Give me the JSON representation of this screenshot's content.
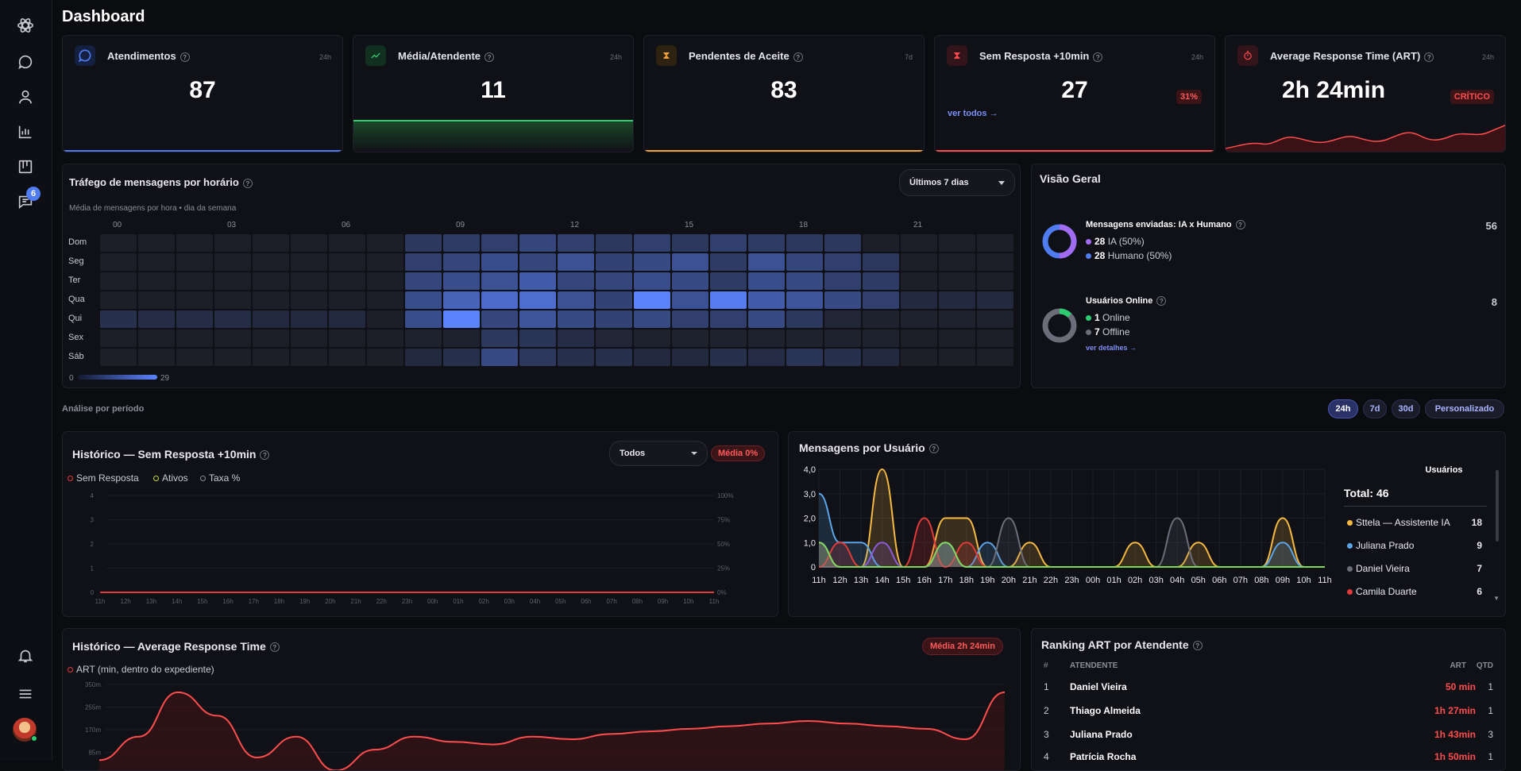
{
  "page": {
    "title": "Dashboard"
  },
  "sidebar": {
    "badge_count": "6"
  },
  "kpis": [
    {
      "label": "Atendimentos",
      "period": "24h",
      "value": "87",
      "icon": "chat-bubble-icon",
      "accent": "#4f7cf0"
    },
    {
      "label": "Média/Atendente",
      "period": "24h",
      "value": "11",
      "icon": "trend-up-icon",
      "accent": "#2ecc71"
    },
    {
      "label": "Pendentes de Aceite",
      "period": "7d",
      "value": "83",
      "icon": "hourglass-icon",
      "accent": "#f0a13c"
    },
    {
      "label": "Sem Resposta +10min",
      "period": "24h",
      "value": "27",
      "icon": "hourglass-icon",
      "accent": "#ff4d4d",
      "badge": "31%",
      "link": "ver todos →"
    },
    {
      "label": "Average Response Time (ART)",
      "period": "24h",
      "value": "2h 24min",
      "icon": "timer-icon",
      "accent": "#ff4d4d",
      "badge": "CRÍTICO"
    }
  ],
  "traffic": {
    "title": "Tráfego de mensagens por horário",
    "subtitle": "Média de mensagens por hora • dia da semana",
    "range": "Últimos 7 dias",
    "days": [
      "Dom",
      "Seg",
      "Ter",
      "Qua",
      "Qui",
      "Sex",
      "Sáb"
    ],
    "hour_labels": [
      "00",
      "03",
      "06",
      "09",
      "12",
      "15",
      "18",
      "21"
    ],
    "scale_min": "0",
    "scale_max": "29",
    "matrix": [
      [
        1,
        1,
        1,
        1,
        1,
        1,
        1,
        1,
        8,
        9,
        10,
        12,
        10,
        8,
        10,
        8,
        10,
        9,
        8,
        8,
        1,
        1,
        1,
        1
      ],
      [
        1,
        1,
        1,
        1,
        1,
        1,
        1,
        1,
        10,
        12,
        14,
        12,
        15,
        11,
        13,
        15,
        9,
        15,
        12,
        10,
        8,
        1,
        1,
        1
      ],
      [
        1,
        1,
        1,
        1,
        1,
        1,
        1,
        1,
        12,
        14,
        15,
        18,
        12,
        12,
        14,
        13,
        9,
        14,
        13,
        10,
        9,
        1,
        1,
        1
      ],
      [
        1,
        1,
        1,
        1,
        1,
        1,
        1,
        1,
        14,
        20,
        22,
        23,
        15,
        11,
        29,
        15,
        27,
        18,
        16,
        13,
        10,
        4,
        4,
        4
      ],
      [
        6,
        5,
        5,
        5,
        4,
        4,
        4,
        1,
        14,
        29,
        12,
        16,
        13,
        11,
        13,
        10,
        10,
        13,
        8,
        3,
        2,
        2,
        2,
        2
      ],
      [
        1,
        1,
        1,
        1,
        1,
        1,
        1,
        1,
        2,
        2,
        8,
        7,
        5,
        3,
        2,
        2,
        2,
        2,
        2,
        2,
        2,
        1,
        1,
        1
      ],
      [
        1,
        1,
        1,
        1,
        1,
        1,
        1,
        1,
        4,
        6,
        13,
        8,
        6,
        6,
        4,
        4,
        6,
        5,
        7,
        6,
        4,
        1,
        1,
        1
      ]
    ]
  },
  "overview": {
    "title": "Visão Geral",
    "messages": {
      "title": "Mensagens enviadas: IA x Humano",
      "total": "56",
      "ia_value": "28",
      "ia_label": "IA (50%)",
      "human_value": "28",
      "human_label": "Humano (50%)"
    },
    "users": {
      "title": "Usuários Online",
      "total": "8",
      "online_value": "1",
      "online_label": "Online",
      "offline_value": "7",
      "offline_label": "Offline",
      "link": "ver detalhes →"
    }
  },
  "period": {
    "label": "Análise por período",
    "options": [
      "24h",
      "7d",
      "30d",
      "Personalizado"
    ],
    "active": "24h"
  },
  "no_response_history": {
    "title": "Histórico — Sem Resposta +10min",
    "filter": "Todos",
    "badge": "Média 0%",
    "legend": [
      "Sem Resposta",
      "Ativos",
      "Taxa %"
    ]
  },
  "messages_per_user": {
    "title": "Mensagens por Usuário",
    "users_header": "Usuários",
    "total": "Total: 46",
    "users": [
      {
        "name": "Sttela — Assistente IA",
        "count": "18",
        "color": "#f5b942"
      },
      {
        "name": "Juliana Prado",
        "count": "9",
        "color": "#5ba4e6"
      },
      {
        "name": "Daniel Vieira",
        "count": "7",
        "color": "#6b6d78"
      },
      {
        "name": "Camila Duarte",
        "count": "6",
        "color": "#e03a3a"
      }
    ]
  },
  "art_history": {
    "title": "Histórico — Average Response Time",
    "badge": "Média 2h 24min",
    "legend": "ART (min, dentro do expediente)"
  },
  "ranking": {
    "title": "Ranking ART por Atendente",
    "headers": {
      "num": "#",
      "name": "ATENDENTE",
      "art": "ART",
      "qtd": "QTD"
    },
    "rows": [
      {
        "num": "1",
        "name": "Daniel Vieira",
        "art": "50 min",
        "qtd": "1"
      },
      {
        "num": "2",
        "name": "Thiago Almeida",
        "art": "1h 27min",
        "qtd": "1"
      },
      {
        "num": "3",
        "name": "Juliana Prado",
        "art": "1h 43min",
        "qtd": "3"
      },
      {
        "num": "4",
        "name": "Patrícia Rocha",
        "art": "1h 50min",
        "qtd": "1"
      }
    ]
  },
  "chart_data": [
    {
      "type": "line",
      "title": "Histórico — Sem Resposta +10min",
      "x": [
        "11h",
        "12h",
        "13h",
        "14h",
        "15h",
        "16h",
        "17h",
        "18h",
        "19h",
        "20h",
        "21h",
        "22h",
        "23h",
        "00h",
        "01h",
        "02h",
        "03h",
        "04h",
        "05h",
        "06h",
        "07h",
        "08h",
        "09h",
        "10h",
        "11h"
      ],
      "ylim": [
        0,
        4
      ],
      "y_ticks": [
        "0",
        "1",
        "2",
        "3",
        "4"
      ],
      "y2_ticks": [
        "0%",
        "25%",
        "50%",
        "75%",
        "100%"
      ],
      "series": [
        {
          "name": "Sem Resposta",
          "values": [
            0,
            0,
            0,
            0,
            0,
            0,
            0,
            0,
            0,
            0,
            0,
            0,
            0,
            0,
            0,
            0,
            0,
            0,
            0,
            0,
            0,
            0,
            0,
            0,
            0
          ]
        },
        {
          "name": "Ativos",
          "values": [
            0,
            0,
            0,
            0,
            0,
            0,
            0,
            0,
            0,
            0,
            0,
            0,
            0,
            0,
            0,
            0,
            0,
            0,
            0,
            0,
            0,
            0,
            0,
            0,
            0
          ]
        },
        {
          "name": "Taxa %",
          "values": [
            0,
            0,
            0,
            0,
            0,
            0,
            0,
            0,
            0,
            0,
            0,
            0,
            0,
            0,
            0,
            0,
            0,
            0,
            0,
            0,
            0,
            0,
            0,
            0,
            0
          ]
        }
      ]
    },
    {
      "type": "area",
      "title": "Mensagens por Usuário",
      "x": [
        "11h",
        "12h",
        "13h",
        "14h",
        "15h",
        "16h",
        "17h",
        "18h",
        "19h",
        "20h",
        "21h",
        "22h",
        "23h",
        "00h",
        "01h",
        "02h",
        "03h",
        "04h",
        "05h",
        "06h",
        "07h",
        "08h",
        "09h",
        "10h",
        "11h"
      ],
      "ylim": [
        0,
        4
      ],
      "y_ticks": [
        "0",
        "1,0",
        "2,0",
        "3,0",
        "4,0"
      ],
      "series": [
        {
          "name": "Sttela — Assistente IA",
          "values": [
            1,
            0,
            0,
            4,
            0,
            0,
            2,
            2,
            0,
            0,
            1,
            0,
            0,
            0,
            0,
            1,
            0,
            0,
            1,
            0,
            0,
            0,
            2,
            0,
            0
          ]
        },
        {
          "name": "Juliana Prado",
          "values": [
            3,
            1,
            1,
            0,
            0,
            0,
            1,
            0,
            1,
            0,
            0,
            0,
            0,
            0,
            0,
            0,
            0,
            0,
            0,
            0,
            0,
            0,
            1,
            0,
            0
          ]
        },
        {
          "name": "Daniel Vieira",
          "values": [
            0,
            0,
            0,
            0,
            0,
            0,
            1,
            0,
            0,
            2,
            0,
            0,
            0,
            0,
            0,
            0,
            0,
            2,
            0,
            0,
            0,
            0,
            0,
            0,
            0
          ]
        },
        {
          "name": "Camila Duarte",
          "values": [
            0,
            1,
            0,
            0,
            0,
            2,
            0,
            1,
            0,
            0,
            0,
            0,
            0,
            0,
            0,
            0,
            0,
            0,
            0,
            0,
            0,
            0,
            0,
            0,
            0
          ]
        },
        {
          "name": "",
          "values": [
            1,
            0,
            0,
            1,
            0,
            0,
            1,
            0,
            0,
            0,
            0,
            0,
            0,
            0,
            0,
            0,
            0,
            0,
            0,
            0,
            0,
            0,
            0,
            0,
            0
          ],
          "color": "#8e5bd8"
        },
        {
          "name": "",
          "values": [
            1,
            0,
            0,
            0,
            0,
            0,
            1,
            0,
            0,
            0,
            0,
            0,
            0,
            0,
            0,
            0,
            0,
            0,
            0,
            0,
            0,
            0,
            0,
            0,
            0
          ],
          "color": "#7ed957"
        }
      ]
    },
    {
      "type": "area",
      "title": "Histórico — Average Response Time",
      "y_ticks": [
        "350m",
        "255m",
        "170m",
        "85m"
      ],
      "series": [
        {
          "name": "ART (min, dentro do expediente)",
          "values": [
            60,
            150,
            320,
            230,
            70,
            150,
            20,
            100,
            150,
            130,
            120,
            150,
            140,
            160,
            170,
            180,
            190,
            200,
            210,
            200,
            190,
            180,
            140,
            320
          ]
        }
      ]
    }
  ]
}
